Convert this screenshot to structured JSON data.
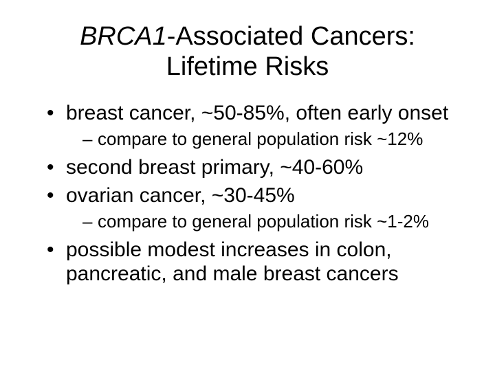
{
  "title": {
    "italic_part": "BRCA1",
    "rest": "-Associated Cancers: Lifetime Risks"
  },
  "bullets": [
    {
      "text": "breast cancer, ~50-85%, often early onset",
      "sub": [
        "compare to general population risk ~12%"
      ]
    },
    {
      "text": "second breast primary, ~40-60%",
      "sub": []
    },
    {
      "text": "ovarian cancer, ~30-45%",
      "sub": [
        "compare to general population risk ~1-2%"
      ]
    },
    {
      "text": "possible modest increases in colon, pancreatic, and male breast cancers",
      "sub": []
    }
  ],
  "style": {
    "background_color": "#ffffff",
    "text_color": "#000000",
    "title_fontsize": 38,
    "bullet_fontsize": 30,
    "subbullet_fontsize": 26,
    "font_family": "Arial"
  }
}
